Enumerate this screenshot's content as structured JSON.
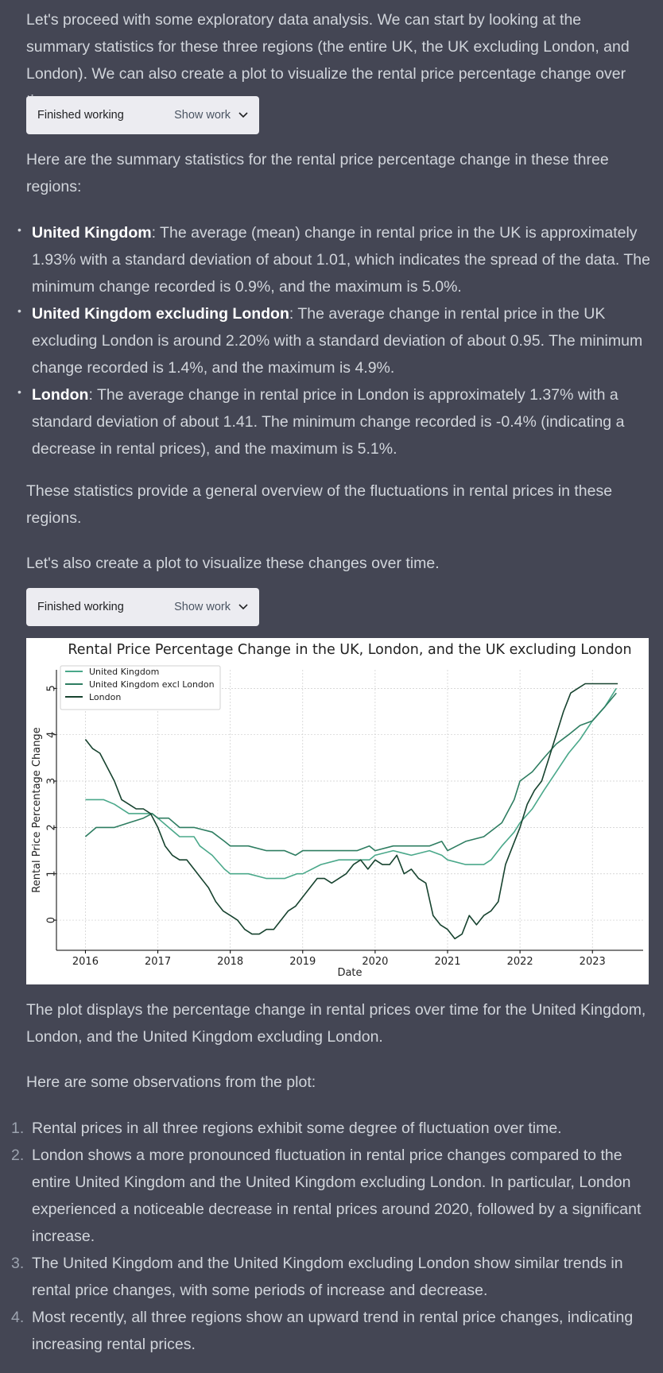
{
  "intro": "Let's proceed with some exploratory data analysis. We can start by looking at the summary statistics for these three regions (the entire UK, the UK excluding London, and London). We can also create a plot to visualize the rental price percentage change over time.",
  "work1": {
    "status": "Finished working",
    "show": "Show work",
    "icon": "chevron-down-icon"
  },
  "summary_intro": "Here are the summary statistics for the rental price percentage change in these three regions:",
  "bullets": [
    {
      "bold": "United Kingdom",
      "text": ": The average (mean) change in rental price in the UK is approximately 1.93% with a standard deviation of about 1.01, which indicates the spread of the data. The minimum change recorded is 0.9%, and the maximum is 5.0%."
    },
    {
      "bold": "United Kingdom excluding London",
      "text": ": The average change in rental price in the UK excluding London is around 2.20% with a standard deviation of about 0.95. The minimum change recorded is 1.4%, and the maximum is 4.9%."
    },
    {
      "bold": "London",
      "text": ": The average change in rental price in London is approximately 1.37% with a standard deviation of about 1.41. The minimum change recorded is -0.4% (indicating a decrease in rental prices), and the maximum is 5.1%."
    }
  ],
  "stats_note": "These statistics provide a general overview of the fluctuations in rental prices in these regions.",
  "plot_intro": "Let's also create a plot to visualize these changes over time.",
  "work2": {
    "status": "Finished working",
    "show": "Show work",
    "icon": "chevron-down-icon"
  },
  "chart_data": {
    "type": "line",
    "title": "Rental Price Percentage Change in the UK, London, and the UK excluding London",
    "xlabel": "Date",
    "ylabel": "Rental Price Percentage Change",
    "xlim": [
      2015.6,
      2023.7
    ],
    "ylim": [
      -0.65,
      5.4
    ],
    "xticks": [
      2016,
      2017,
      2018,
      2019,
      2020,
      2021,
      2022,
      2023
    ],
    "yticks": [
      0,
      1,
      2,
      3,
      4,
      5
    ],
    "grid": true,
    "legend": "top-left",
    "series": [
      {
        "name": "United Kingdom",
        "color": "#4aa88a",
        "x": [
          2016.0,
          2016.25,
          2016.4,
          2016.6,
          2016.75,
          2016.92,
          2017.0,
          2017.15,
          2017.3,
          2017.5,
          2017.58,
          2017.75,
          2017.92,
          2018.0,
          2018.25,
          2018.5,
          2018.75,
          2018.92,
          2019.0,
          2019.25,
          2019.5,
          2019.75,
          2019.92,
          2020.0,
          2020.25,
          2020.5,
          2020.75,
          2020.92,
          2021.0,
          2021.25,
          2021.5,
          2021.6,
          2021.75,
          2021.92,
          2022.0,
          2022.17,
          2022.33,
          2022.5,
          2022.67,
          2022.83,
          2023.0,
          2023.17,
          2023.33
        ],
        "y": [
          2.6,
          2.6,
          2.5,
          2.3,
          2.3,
          2.3,
          2.2,
          2.0,
          1.8,
          1.8,
          1.6,
          1.4,
          1.1,
          1.0,
          1.0,
          0.9,
          0.9,
          1.0,
          1.0,
          1.2,
          1.3,
          1.3,
          1.3,
          1.4,
          1.5,
          1.4,
          1.5,
          1.4,
          1.3,
          1.2,
          1.2,
          1.3,
          1.6,
          1.9,
          2.1,
          2.4,
          2.8,
          3.2,
          3.6,
          3.9,
          4.3,
          4.6,
          5.0
        ]
      },
      {
        "name": "United Kingdom excl London",
        "color": "#2e7d61",
        "x": [
          2016.0,
          2016.15,
          2016.4,
          2016.6,
          2016.8,
          2016.92,
          2017.0,
          2017.15,
          2017.3,
          2017.5,
          2017.75,
          2017.92,
          2018.0,
          2018.25,
          2018.5,
          2018.75,
          2018.9,
          2019.0,
          2019.25,
          2019.5,
          2019.75,
          2019.92,
          2020.0,
          2020.25,
          2020.5,
          2020.75,
          2020.92,
          2021.0,
          2021.25,
          2021.5,
          2021.75,
          2021.92,
          2022.0,
          2022.17,
          2022.33,
          2022.5,
          2022.67,
          2022.83,
          2023.0,
          2023.17,
          2023.33
        ],
        "y": [
          1.8,
          2.0,
          2.0,
          2.1,
          2.2,
          2.3,
          2.2,
          2.2,
          2.0,
          2.0,
          1.9,
          1.7,
          1.6,
          1.6,
          1.5,
          1.5,
          1.4,
          1.5,
          1.5,
          1.5,
          1.5,
          1.6,
          1.5,
          1.6,
          1.6,
          1.6,
          1.7,
          1.5,
          1.7,
          1.8,
          2.1,
          2.6,
          3.0,
          3.2,
          3.5,
          3.8,
          4.0,
          4.2,
          4.3,
          4.6,
          4.9
        ]
      },
      {
        "name": "London",
        "color": "#17432f",
        "x": [
          2016.0,
          2016.1,
          2016.2,
          2016.3,
          2016.4,
          2016.5,
          2016.6,
          2016.7,
          2016.8,
          2016.9,
          2017.0,
          2017.1,
          2017.2,
          2017.3,
          2017.4,
          2017.5,
          2017.6,
          2017.7,
          2017.8,
          2017.9,
          2018.0,
          2018.1,
          2018.2,
          2018.3,
          2018.4,
          2018.5,
          2018.6,
          2018.7,
          2018.8,
          2018.9,
          2019.0,
          2019.1,
          2019.2,
          2019.3,
          2019.4,
          2019.5,
          2019.6,
          2019.7,
          2019.8,
          2019.9,
          2020.0,
          2020.1,
          2020.2,
          2020.3,
          2020.4,
          2020.5,
          2020.6,
          2020.7,
          2020.8,
          2020.9,
          2021.0,
          2021.1,
          2021.2,
          2021.3,
          2021.4,
          2021.5,
          2021.6,
          2021.7,
          2021.8,
          2021.9,
          2022.0,
          2022.1,
          2022.2,
          2022.3,
          2022.4,
          2022.5,
          2022.6,
          2022.7,
          2022.8,
          2022.9,
          2023.0,
          2023.1,
          2023.2,
          2023.35
        ],
        "y": [
          3.9,
          3.7,
          3.6,
          3.3,
          3.0,
          2.6,
          2.5,
          2.4,
          2.4,
          2.3,
          2.0,
          1.6,
          1.4,
          1.3,
          1.3,
          1.1,
          0.9,
          0.7,
          0.4,
          0.2,
          0.1,
          0.0,
          -0.2,
          -0.3,
          -0.3,
          -0.2,
          -0.2,
          0.0,
          0.2,
          0.3,
          0.5,
          0.7,
          0.9,
          0.9,
          0.8,
          0.9,
          1.0,
          1.2,
          1.3,
          1.1,
          1.3,
          1.2,
          1.2,
          1.4,
          1.0,
          1.1,
          0.9,
          0.8,
          0.1,
          -0.1,
          -0.2,
          -0.4,
          -0.3,
          0.1,
          -0.1,
          0.1,
          0.2,
          0.4,
          1.2,
          1.6,
          2.0,
          2.5,
          2.8,
          3.0,
          3.5,
          4.0,
          4.5,
          4.9,
          5.0,
          5.1,
          5.1,
          5.1,
          5.1,
          5.1
        ]
      }
    ]
  },
  "plot_desc": "The plot displays the percentage change in rental prices over time for the United Kingdom, London, and the United Kingdom excluding London.",
  "obs_intro": "Here are some observations from the plot:",
  "observations": [
    {
      "num": "1.",
      "text": "Rental prices in all three regions exhibit some degree of fluctuation over time."
    },
    {
      "num": "2.",
      "text": "London shows a more pronounced fluctuation in rental price changes compared to the entire United Kingdom and the United Kingdom excluding London. In particular, London experienced a noticeable decrease in rental prices around 2020, followed by a significant increase."
    },
    {
      "num": "3.",
      "text": "The United Kingdom and the United Kingdom excluding London show similar trends in rental price changes, with some periods of increase and decrease."
    },
    {
      "num": "4.",
      "text": "Most recently, all three regions show an upward trend in rental price changes, indicating increasing rental prices."
    }
  ]
}
